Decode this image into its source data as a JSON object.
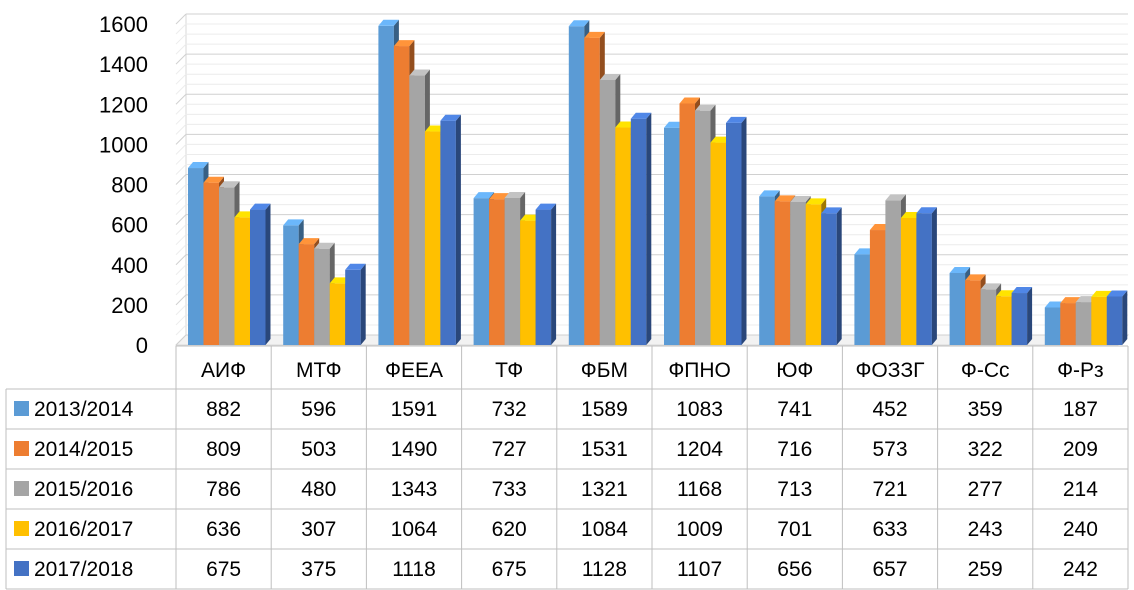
{
  "chart_data": {
    "type": "bar",
    "categories": [
      "АИФ",
      "МТФ",
      "ФЕЕА",
      "ТФ",
      "ФБМ",
      "ФПНО",
      "ЮФ",
      "ФОЗЗГ",
      "Ф-Сс",
      "Ф-Рз"
    ],
    "series": [
      {
        "name": "2013/2014",
        "color": "#5B9BD5",
        "values": [
          882,
          596,
          1591,
          732,
          1589,
          1083,
          741,
          452,
          359,
          187
        ]
      },
      {
        "name": "2014/2015",
        "color": "#ED7D31",
        "values": [
          809,
          503,
          1490,
          727,
          1531,
          1204,
          716,
          573,
          322,
          209
        ]
      },
      {
        "name": "2015/2016",
        "color": "#A5A5A5",
        "values": [
          786,
          480,
          1343,
          733,
          1321,
          1168,
          713,
          721,
          277,
          214
        ]
      },
      {
        "name": "2016/2017",
        "color": "#FFC000",
        "values": [
          636,
          307,
          1064,
          620,
          1084,
          1009,
          701,
          633,
          243,
          240
        ]
      },
      {
        "name": "2017/2018",
        "color": "#4472C4",
        "values": [
          675,
          375,
          1118,
          675,
          1128,
          1107,
          656,
          657,
          259,
          242
        ]
      }
    ],
    "yaxis": {
      "min": 0,
      "max": 1600,
      "step": 200
    },
    "grid": true,
    "legend": "data-table-left",
    "data_table": true,
    "style": "3d-clustered-column"
  }
}
